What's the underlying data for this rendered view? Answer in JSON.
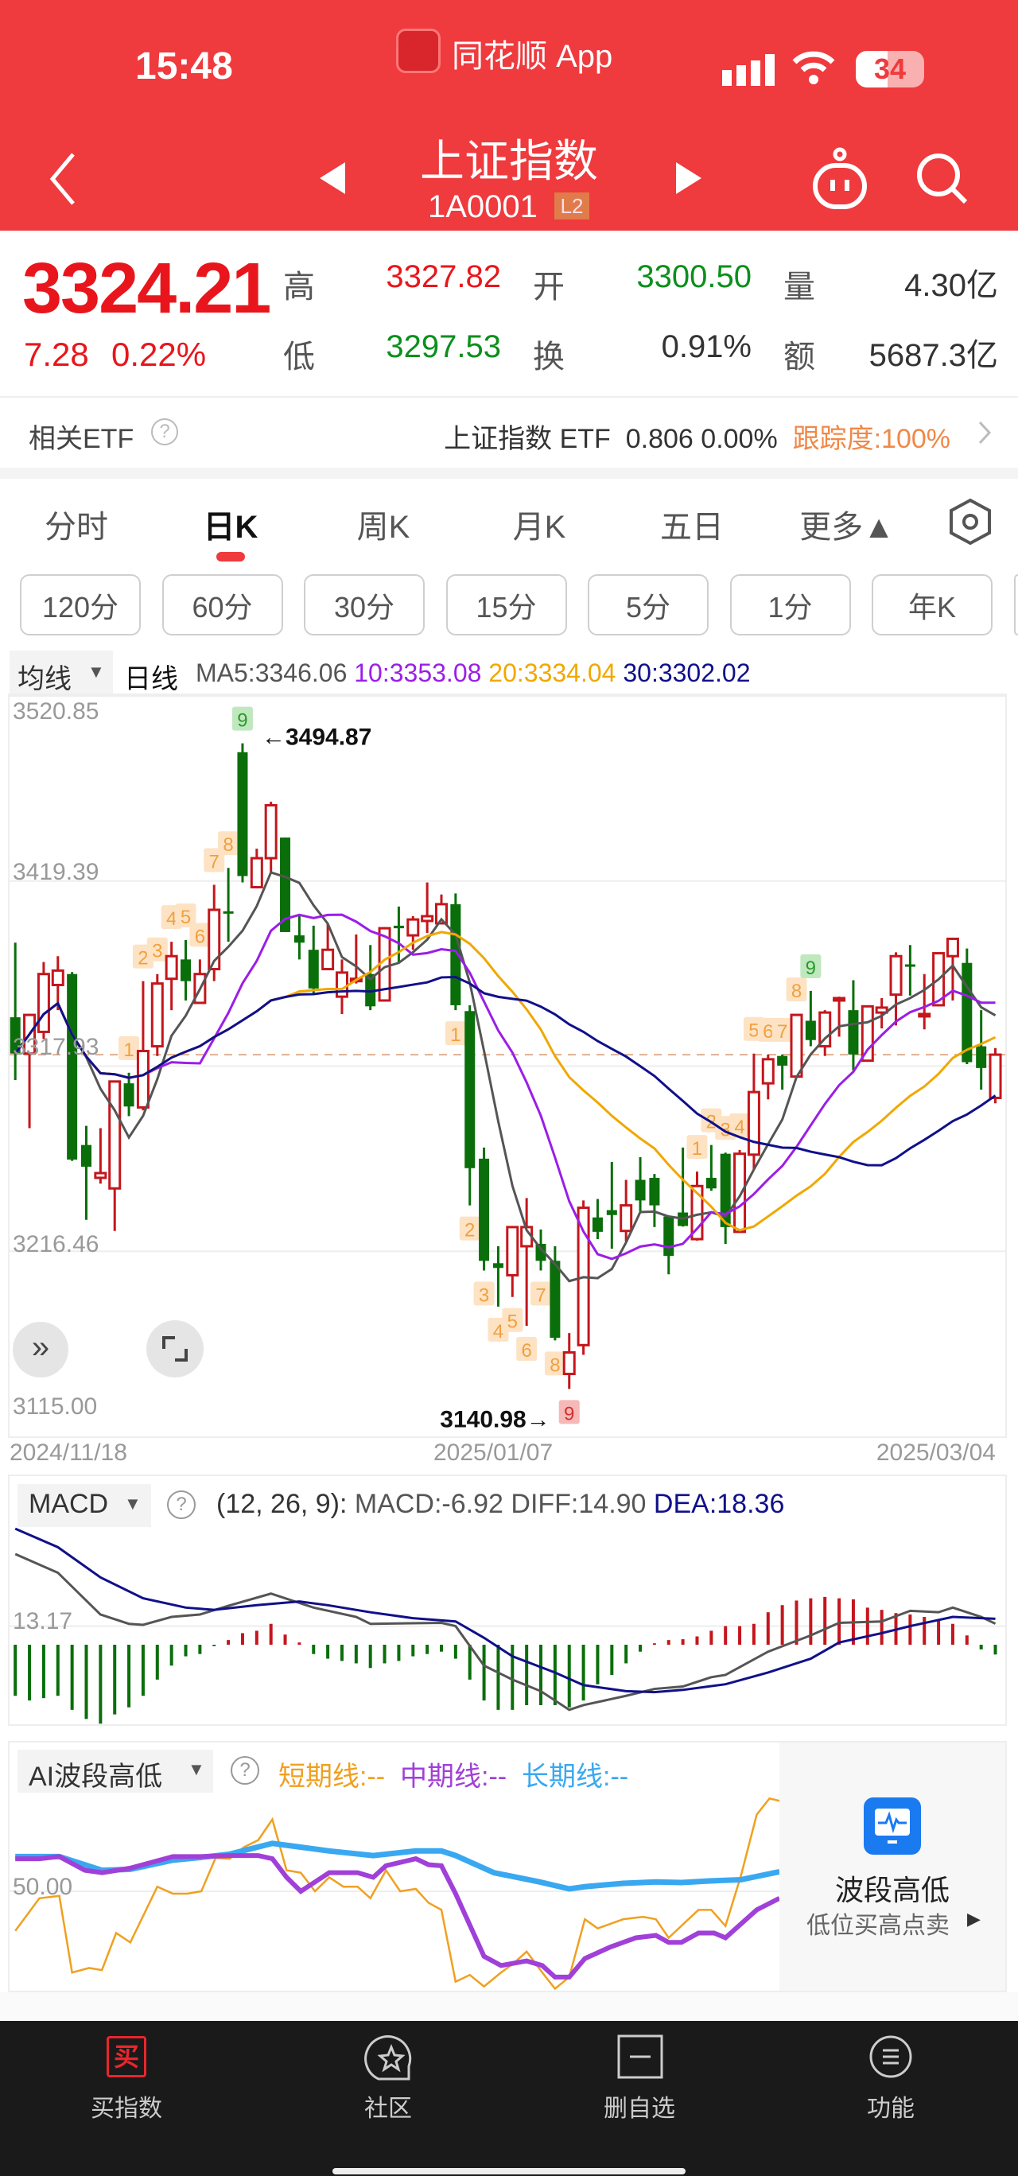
{
  "status": {
    "time": "15:48",
    "app": "同花顺 App",
    "battery": "34"
  },
  "header": {
    "title": "上证指数",
    "code": "1A0001",
    "badge": "L2"
  },
  "quote": {
    "price": "3324.21",
    "change": "7.28",
    "change_pct": "0.22%",
    "high_label": "高",
    "high": "3327.82",
    "open_label": "开",
    "open": "3300.50",
    "vol_label": "量",
    "vol": "4.30亿",
    "low_label": "低",
    "low": "3297.53",
    "turn_label": "换",
    "turn": "0.91%",
    "amt_label": "额",
    "amt": "5687.3亿"
  },
  "etf": {
    "label": "相关ETF",
    "name": "上证指数 ETF",
    "price": "0.806",
    "pct": "0.00%",
    "track": "跟踪度:100%"
  },
  "tabs": [
    {
      "label": "分时"
    },
    {
      "label": "日K",
      "active": true
    },
    {
      "label": "周K"
    },
    {
      "label": "月K"
    },
    {
      "label": "五日"
    },
    {
      "label": "更多▲"
    }
  ],
  "periods": [
    "120分",
    "60分",
    "30分",
    "15分",
    "5分",
    "1分",
    "年K"
  ],
  "ma_legend": {
    "selector": "均线",
    "type": "日线",
    "ma5": "MA5:3346.06",
    "ma10": "10:3353.08",
    "ma20": "20:3334.04",
    "ma30": "30:3302.02"
  },
  "colors": {
    "header": "#ef3a3e",
    "up": "#c4161c",
    "down": "#0a6e0a",
    "ma5": "#555555",
    "ma10": "#9b1ee8",
    "ma20": "#f0a800",
    "ma30": "#10108a",
    "diff": "#555555",
    "dea": "#10108a",
    "short": "#f0a020",
    "mid": "#a040d8",
    "long": "#3aa8f0"
  },
  "chart_data": [
    {
      "type": "candlestick",
      "ylim": [
        3115.0,
        3520.85
      ],
      "yticks": [
        "3520.85",
        "3419.39",
        "3317.93",
        "3216.46",
        "3115.00"
      ],
      "xticks": [
        "2024/11/18",
        "2025/01/07",
        "2025/03/04"
      ],
      "current_price": 3324.21,
      "max_label": "3494.87",
      "min_label": "3140.98",
      "max_index": 16,
      "min_index": 39,
      "ohlc": [
        [
          3344.7,
          3385.6,
          3310.3,
          3324.8
        ],
        [
          3324.8,
          3346.0,
          3283.9,
          3346.0
        ],
        [
          3336.7,
          3375.0,
          3332.8,
          3368.4
        ],
        [
          3362.4,
          3378.2,
          3348.6,
          3370.3
        ],
        [
          3368.4,
          3369.5,
          3266.0,
          3266.7
        ],
        [
          3274.7,
          3285.2,
          3233.7,
          3262.8
        ],
        [
          3256.7,
          3283.9,
          3253.5,
          3259.3
        ],
        [
          3250.9,
          3309.5,
          3227.6,
          3309.5
        ],
        [
          3308.5,
          3314.3,
          3290.5,
          3295.8
        ],
        [
          3295.3,
          3364.5,
          3293.7,
          3326.2
        ],
        [
          3328.8,
          3368.4,
          3323.5,
          3363.2
        ],
        [
          3365.8,
          3386.1,
          3348.6,
          3378.2
        ],
        [
          3376.4,
          3387.0,
          3353.9,
          3364.5
        ],
        [
          3352.6,
          3376.4,
          3352.6,
          3368.4
        ],
        [
          3371.1,
          3417.3,
          3364.5,
          3403.6
        ],
        [
          3402.8,
          3426.6,
          3386.1,
          3402.0
        ],
        [
          3490.0,
          3494.87,
          3418.6,
          3422.1
        ],
        [
          3416.0,
          3437.1,
          3416.0,
          3431.9
        ],
        [
          3431.9,
          3462.8,
          3423.9,
          3460.9
        ],
        [
          3443.2,
          3443.2,
          3391.4,
          3391.4
        ],
        [
          3389.6,
          3400.1,
          3376.4,
          3385.6
        ],
        [
          3381.7,
          3394.9,
          3357.9,
          3360.5
        ],
        [
          3371.1,
          3396.2,
          3371.1,
          3381.7
        ],
        [
          3356.0,
          3376.4,
          3346.5,
          3369.2
        ],
        [
          3364.5,
          3390.1,
          3363.2,
          3365.8
        ],
        [
          3368.4,
          3384.3,
          3348.6,
          3350.7
        ],
        [
          3353.9,
          3394.1,
          3353.9,
          3393.5
        ],
        [
          3394.9,
          3405.4,
          3375.0,
          3393.5
        ],
        [
          3389.6,
          3400.1,
          3381.7,
          3398.3
        ],
        [
          3397.5,
          3418.6,
          3390.9,
          3400.1
        ],
        [
          3396.2,
          3412.0,
          3396.2,
          3406.7
        ],
        [
          3406.7,
          3412.6,
          3348.6,
          3351.3
        ],
        [
          3348.1,
          3351.3,
          3241.6,
          3262.0
        ],
        [
          3267.2,
          3273.3,
          3205.9,
          3211.2
        ],
        [
          3209.9,
          3219.2,
          3186.1,
          3207.3
        ],
        [
          3203.3,
          3229.7,
          3191.4,
          3229.7
        ],
        [
          3219.2,
          3245.6,
          3175.6,
          3229.7
        ],
        [
          3220.5,
          3228.4,
          3205.9,
          3211.2
        ],
        [
          3211.2,
          3219.2,
          3167.6,
          3169.0
        ],
        [
          3149.2,
          3171.6,
          3140.98,
          3161.0
        ],
        [
          3165.0,
          3244.3,
          3159.7,
          3240.3
        ],
        [
          3235.0,
          3245.1,
          3223.1,
          3227.1
        ],
        [
          3239.0,
          3265.4,
          3217.8,
          3236.3
        ],
        [
          3227.6,
          3255.6,
          3221.8,
          3241.6
        ],
        [
          3255.6,
          3268.0,
          3237.7,
          3244.3
        ],
        [
          3256.7,
          3258.8,
          3229.7,
          3241.6
        ],
        [
          3235.5,
          3236.0,
          3203.8,
          3213.9
        ],
        [
          3237.7,
          3273.3,
          3230.0,
          3230.3
        ],
        [
          3223.1,
          3260.1,
          3222.3,
          3252.2
        ],
        [
          3256.7,
          3274.7,
          3249.6,
          3250.9
        ],
        [
          3269.9,
          3270.5,
          3220.5,
          3229.7
        ],
        [
          3227.1,
          3272.0,
          3227.1,
          3269.9
        ],
        [
          3269.4,
          3324.8,
          3261.4,
          3303.7
        ],
        [
          3308.5,
          3324.3,
          3299.7,
          3321.7
        ],
        [
          3323.5,
          3324.3,
          3305.0,
          3318.2
        ],
        [
          3312.2,
          3346.5,
          3312.2,
          3346.0
        ],
        [
          3342.8,
          3359.2,
          3328.8,
          3332.2
        ],
        [
          3328.8,
          3348.6,
          3323.5,
          3347.3
        ],
        [
          3354.0,
          3356.0,
          3334.1,
          3355.2
        ],
        [
          3348.6,
          3365.0,
          3315.6,
          3324.3
        ],
        [
          3320.9,
          3350.7,
          3320.9,
          3350.7
        ],
        [
          3347.3,
          3355.2,
          3338.6,
          3350.0
        ],
        [
          3357.1,
          3380.3,
          3340.2,
          3378.2
        ],
        [
          3373.7,
          3384.3,
          3356.6,
          3372.9
        ],
        [
          3346.0,
          3368.4,
          3338.1,
          3346.5
        ],
        [
          3351.3,
          3379.8,
          3351.3,
          3379.8
        ],
        [
          3378.2,
          3388.3,
          3353.9,
          3387.7
        ],
        [
          3374.5,
          3382.4,
          3319.0,
          3320.1
        ],
        [
          3328.8,
          3348.6,
          3305.0,
          3316.9
        ],
        [
          3300.5,
          3327.82,
          3297.53,
          3324.21
        ]
      ],
      "td_marks": [
        {
          "start": 8,
          "pos": "above"
        },
        {
          "start": 31,
          "pos": "below"
        },
        {
          "start": 48,
          "pos": "above"
        }
      ]
    },
    {
      "type": "bar+line",
      "name": "MACD",
      "params": "(12, 26, 9):",
      "macd_label": "MACD:-6.92",
      "diff_label": "DIFF:14.90",
      "dea_label": "DEA:18.36",
      "ytick": "13.17",
      "macd": [
        -36.2,
        -39.5,
        -37.8,
        -36.2,
        -46.1,
        -52.6,
        -55.9,
        -49.4,
        -44.4,
        -36.2,
        -24.7,
        -14.8,
        -8.2,
        -6.6,
        -1.0,
        3.3,
        8.2,
        9.9,
        14.8,
        7.2,
        1.6,
        -6.6,
        -9.9,
        -11.5,
        -13.2,
        -16.5,
        -13.2,
        -11.5,
        -8.2,
        -6.6,
        -4.9,
        -9.9,
        -24.7,
        -39.5,
        -46.1,
        -46.1,
        -42.8,
        -42.8,
        -42.8,
        -44.4,
        -39.5,
        -28.0,
        -21.4,
        -13.2,
        -4.9,
        1.0,
        3.3,
        3.9,
        5.9,
        9.9,
        13.2,
        13.2,
        14.8,
        23.0,
        28.0,
        31.3,
        32.9,
        33.9,
        32.9,
        32.2,
        26.3,
        24.7,
        22.4,
        21.4,
        19.7,
        18.1,
        14.8,
        6.6,
        -3.3,
        -6.92
      ],
      "diff": [
        [
          0,
          64.2
        ],
        [
          3,
          51.0
        ],
        [
          6,
          21.4
        ],
        [
          8,
          14.8
        ],
        [
          9,
          14.1
        ],
        [
          11,
          19.7
        ],
        [
          13,
          21.4
        ],
        [
          15,
          27.6
        ],
        [
          18,
          36.2
        ],
        [
          21,
          26.3
        ],
        [
          24,
          19.7
        ],
        [
          25,
          14.8
        ],
        [
          30,
          15.5
        ],
        [
          31,
          13.2
        ],
        [
          33,
          -14.8
        ],
        [
          35,
          -24.7
        ],
        [
          37,
          -32.9
        ],
        [
          39,
          -46.1
        ],
        [
          40,
          -42.8
        ],
        [
          43,
          -36.2
        ],
        [
          45,
          -31.3
        ],
        [
          47,
          -29.6
        ],
        [
          49,
          -23.0
        ],
        [
          50,
          -21.4
        ],
        [
          53,
          -4.9
        ],
        [
          56,
          6.6
        ],
        [
          58,
          15.5
        ],
        [
          61,
          16.5
        ],
        [
          63,
          24.0
        ],
        [
          65,
          23.0
        ],
        [
          66,
          26.3
        ],
        [
          68,
          19.7
        ],
        [
          69,
          14.9
        ]
      ],
      "dea": [
        [
          0,
          82.2
        ],
        [
          3,
          69.1
        ],
        [
          6,
          47.7
        ],
        [
          9,
          32.9
        ],
        [
          12,
          26.3
        ],
        [
          14,
          24.7
        ],
        [
          17,
          28.0
        ],
        [
          20,
          30.6
        ],
        [
          22,
          28.0
        ],
        [
          25,
          23.0
        ],
        [
          28,
          18.8
        ],
        [
          31,
          16.5
        ],
        [
          33,
          4.9
        ],
        [
          35,
          -8.2
        ],
        [
          38,
          -19.7
        ],
        [
          40,
          -28.6
        ],
        [
          43,
          -32.9
        ],
        [
          45,
          -33.6
        ],
        [
          47,
          -32.0
        ],
        [
          50,
          -28.0
        ],
        [
          53,
          -19.7
        ],
        [
          56,
          -9.9
        ],
        [
          58,
          1.6
        ],
        [
          61,
          8.2
        ],
        [
          63,
          13.2
        ],
        [
          66,
          19.7
        ],
        [
          69,
          18.36
        ]
      ]
    },
    {
      "type": "line",
      "name": "AI波段高低",
      "ytick": "50.00",
      "short_label": "短期线:--",
      "mid_label": "中期线:--",
      "long_label": "长期线:--",
      "short": [
        [
          0,
          30.2
        ],
        [
          1.7,
          46.5
        ],
        [
          3.1,
          47.7
        ],
        [
          4,
          9.3
        ],
        [
          5.2,
          11.6
        ],
        [
          6.1,
          10.5
        ],
        [
          7.1,
          29.1
        ],
        [
          8.1,
          24.4
        ],
        [
          10,
          52.3
        ],
        [
          11.1,
          48.8
        ],
        [
          12.1,
          48.8
        ],
        [
          13.1,
          50
        ],
        [
          14.1,
          66.7
        ],
        [
          15.1,
          66.3
        ],
        [
          16.1,
          72.1
        ],
        [
          17.1,
          75.6
        ],
        [
          18.1,
          86
        ],
        [
          19.1,
          60.5
        ],
        [
          20.1,
          59.3
        ],
        [
          21.1,
          50
        ],
        [
          22.1,
          57
        ],
        [
          23.1,
          52.3
        ],
        [
          24.1,
          52.3
        ],
        [
          25,
          46.5
        ],
        [
          26.1,
          60.5
        ],
        [
          27.1,
          50
        ],
        [
          28.2,
          51.2
        ],
        [
          29.1,
          44.2
        ],
        [
          30,
          40.7
        ],
        [
          31,
          4.7
        ],
        [
          32,
          8.1
        ],
        [
          33,
          2.3
        ],
        [
          34.2,
          9.3
        ],
        [
          35.1,
          14
        ],
        [
          36,
          19.8
        ],
        [
          37.1,
          9.3
        ],
        [
          38,
          1.2
        ],
        [
          39,
          7
        ],
        [
          40.1,
          36
        ],
        [
          41,
          31.4
        ],
        [
          42.8,
          36
        ],
        [
          44.2,
          37.2
        ],
        [
          45.1,
          36
        ],
        [
          46,
          26.7
        ],
        [
          48.1,
          40.7
        ],
        [
          49,
          40.7
        ],
        [
          50,
          32.6
        ],
        [
          51.1,
          58.1
        ],
        [
          52.2,
          88.4
        ],
        [
          53.1,
          96.5
        ],
        [
          53.8,
          95.3
        ]
      ],
      "mid": [
        [
          0,
          66.3
        ],
        [
          1.7,
          66.3
        ],
        [
          3.1,
          67.4
        ],
        [
          4.9,
          60.5
        ],
        [
          6.1,
          59.3
        ],
        [
          8.1,
          61.6
        ],
        [
          11.1,
          67.4
        ],
        [
          13.1,
          67.4
        ],
        [
          15.1,
          67.9
        ],
        [
          17.1,
          67.9
        ],
        [
          18.1,
          66.3
        ],
        [
          19.1,
          57
        ],
        [
          20.1,
          50
        ],
        [
          22.1,
          59.3
        ],
        [
          24.1,
          59.3
        ],
        [
          25.2,
          57
        ],
        [
          26.1,
          62.8
        ],
        [
          28.2,
          66.3
        ],
        [
          29.1,
          63.3
        ],
        [
          30,
          62.8
        ],
        [
          31,
          48.8
        ],
        [
          33,
          17.4
        ],
        [
          34.2,
          12.8
        ],
        [
          36,
          15.1
        ],
        [
          37.1,
          12.8
        ],
        [
          38,
          7
        ],
        [
          39,
          7
        ],
        [
          40.1,
          16.3
        ],
        [
          41.9,
          22.1
        ],
        [
          43.7,
          26.7
        ],
        [
          45.1,
          27.9
        ],
        [
          46,
          24.4
        ],
        [
          46.9,
          24.4
        ],
        [
          48.1,
          29.1
        ],
        [
          49.2,
          29.1
        ],
        [
          50,
          26.7
        ],
        [
          52.2,
          40.7
        ],
        [
          53.8,
          46.5
        ]
      ],
      "long": [
        [
          0,
          67.4
        ],
        [
          3.1,
          67.4
        ],
        [
          6.1,
          60.5
        ],
        [
          8.1,
          61
        ],
        [
          11.1,
          65.6
        ],
        [
          13.1,
          67
        ],
        [
          15.1,
          68.6
        ],
        [
          18.1,
          74
        ],
        [
          20.1,
          72.1
        ],
        [
          22.1,
          70.2
        ],
        [
          25.2,
          67.9
        ],
        [
          28.2,
          70.2
        ],
        [
          30,
          70.2
        ],
        [
          31,
          67.9
        ],
        [
          33.7,
          59.3
        ],
        [
          36.9,
          54.7
        ],
        [
          39,
          51.2
        ],
        [
          40.1,
          52.3
        ],
        [
          42.8,
          54
        ],
        [
          45.1,
          54.7
        ],
        [
          46.9,
          54.4
        ],
        [
          49.2,
          55.3
        ],
        [
          51.1,
          55.8
        ],
        [
          53.8,
          59.8
        ]
      ]
    }
  ],
  "ai_card": {
    "title": "波段高低",
    "subtitle": "低位买高点卖"
  },
  "bottom_nav": [
    {
      "label": "买指数",
      "icon": "买"
    },
    {
      "label": "社区"
    },
    {
      "label": "删自选"
    },
    {
      "label": "功能"
    }
  ]
}
